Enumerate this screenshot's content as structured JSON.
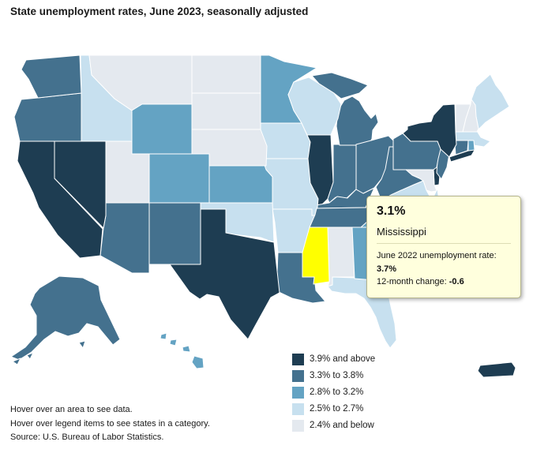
{
  "title": "State unemployment rates, June 2023, seasonally adjusted",
  "colors": {
    "cat1": "#1e3d52",
    "cat2": "#44718e",
    "cat3": "#64a3c3",
    "cat4": "#c7e0ef",
    "cat5": "#e4e9ef",
    "selected": "#ffff00",
    "border": "#ffffff",
    "tooltip_bg": "#ffffdd",
    "tooltip_border": "#b3b38c"
  },
  "legend": {
    "items": [
      {
        "key": "cat1",
        "label": "3.9% and above"
      },
      {
        "key": "cat2",
        "label": "3.3% to 3.8%"
      },
      {
        "key": "cat3",
        "label": "2.8% to 3.2%"
      },
      {
        "key": "cat4",
        "label": "2.5% to 2.7%"
      },
      {
        "key": "cat5",
        "label": "2.4% and below"
      }
    ]
  },
  "tooltip": {
    "value": "3.1%",
    "state": "Mississippi",
    "line1_label": "June 2022 unemployment rate: ",
    "line1_value": "3.7%",
    "line2_label": "12-month change: ",
    "line2_value": "-0.6"
  },
  "footer": {
    "line1": "Hover over an area to see data.",
    "line2": "Hover over legend items to see states in a category.",
    "line3": "Source: U.S. Bureau of Labor Statistics."
  },
  "chart_data": {
    "type": "choropleth-map",
    "title": "State unemployment rates, June 2023, seasonally adjusted",
    "legend_categories": [
      {
        "key": "cat1",
        "label": "3.9% and above"
      },
      {
        "key": "cat2",
        "label": "3.3% to 3.8%"
      },
      {
        "key": "cat3",
        "label": "2.8% to 3.2%"
      },
      {
        "key": "cat4",
        "label": "2.5% to 2.7%"
      },
      {
        "key": "cat5",
        "label": "2.4% and below"
      }
    ],
    "selected_state": {
      "name": "Mississippi",
      "rate_june_2023": "3.1%",
      "rate_june_2022": "3.7%",
      "twelve_month_change": "-0.6"
    },
    "states": [
      {
        "id": "AL",
        "name": "Alabama",
        "category": "cat5"
      },
      {
        "id": "AK",
        "name": "Alaska",
        "category": "cat2"
      },
      {
        "id": "AZ",
        "name": "Arizona",
        "category": "cat2"
      },
      {
        "id": "AR",
        "name": "Arkansas",
        "category": "cat4"
      },
      {
        "id": "CA",
        "name": "California",
        "category": "cat1"
      },
      {
        "id": "CO",
        "name": "Colorado",
        "category": "cat3"
      },
      {
        "id": "CT",
        "name": "Connecticut",
        "category": "cat2"
      },
      {
        "id": "DE",
        "name": "Delaware",
        "category": "cat1"
      },
      {
        "id": "FL",
        "name": "Florida",
        "category": "cat4"
      },
      {
        "id": "GA",
        "name": "Georgia",
        "category": "cat3"
      },
      {
        "id": "HI",
        "name": "Hawaii",
        "category": "cat3"
      },
      {
        "id": "ID",
        "name": "Idaho",
        "category": "cat4"
      },
      {
        "id": "IL",
        "name": "Illinois",
        "category": "cat1"
      },
      {
        "id": "IN",
        "name": "Indiana",
        "category": "cat2"
      },
      {
        "id": "IA",
        "name": "Iowa",
        "category": "cat4"
      },
      {
        "id": "KS",
        "name": "Kansas",
        "category": "cat3"
      },
      {
        "id": "KY",
        "name": "Kentucky",
        "category": "cat2"
      },
      {
        "id": "LA",
        "name": "Louisiana",
        "category": "cat2"
      },
      {
        "id": "ME",
        "name": "Maine",
        "category": "cat4"
      },
      {
        "id": "MD",
        "name": "Maryland",
        "category": "cat5"
      },
      {
        "id": "MA",
        "name": "Massachusetts",
        "category": "cat4"
      },
      {
        "id": "MI",
        "name": "Michigan",
        "category": "cat2"
      },
      {
        "id": "MN",
        "name": "Minnesota",
        "category": "cat3"
      },
      {
        "id": "MS",
        "name": "Mississippi",
        "category": "cat3",
        "highlighted": true
      },
      {
        "id": "MO",
        "name": "Missouri",
        "category": "cat4"
      },
      {
        "id": "MT",
        "name": "Montana",
        "category": "cat5"
      },
      {
        "id": "NE",
        "name": "Nebraska",
        "category": "cat5"
      },
      {
        "id": "NV",
        "name": "Nevada",
        "category": "cat1"
      },
      {
        "id": "NH",
        "name": "New Hampshire",
        "category": "cat5"
      },
      {
        "id": "NJ",
        "name": "New Jersey",
        "category": "cat2"
      },
      {
        "id": "NM",
        "name": "New Mexico",
        "category": "cat2"
      },
      {
        "id": "NY",
        "name": "New York",
        "category": "cat1"
      },
      {
        "id": "NC",
        "name": "North Carolina",
        "category": "cat3"
      },
      {
        "id": "ND",
        "name": "North Dakota",
        "category": "cat5"
      },
      {
        "id": "OH",
        "name": "Ohio",
        "category": "cat2"
      },
      {
        "id": "OK",
        "name": "Oklahoma",
        "category": "cat4"
      },
      {
        "id": "OR",
        "name": "Oregon",
        "category": "cat2"
      },
      {
        "id": "PA",
        "name": "Pennsylvania",
        "category": "cat2"
      },
      {
        "id": "RI",
        "name": "Rhode Island",
        "category": "cat3"
      },
      {
        "id": "SC",
        "name": "South Carolina",
        "category": "cat3"
      },
      {
        "id": "SD",
        "name": "South Dakota",
        "category": "cat5"
      },
      {
        "id": "TN",
        "name": "Tennessee",
        "category": "cat2"
      },
      {
        "id": "TX",
        "name": "Texas",
        "category": "cat1"
      },
      {
        "id": "UT",
        "name": "Utah",
        "category": "cat5"
      },
      {
        "id": "VT",
        "name": "Vermont",
        "category": "cat5"
      },
      {
        "id": "VA",
        "name": "Virginia",
        "category": "cat4"
      },
      {
        "id": "WA",
        "name": "Washington",
        "category": "cat2"
      },
      {
        "id": "WV",
        "name": "West Virginia",
        "category": "cat2"
      },
      {
        "id": "WI",
        "name": "Wisconsin",
        "category": "cat4"
      },
      {
        "id": "WY",
        "name": "Wyoming",
        "category": "cat3"
      },
      {
        "id": "PR",
        "name": "Puerto Rico",
        "category": "cat1"
      }
    ]
  }
}
